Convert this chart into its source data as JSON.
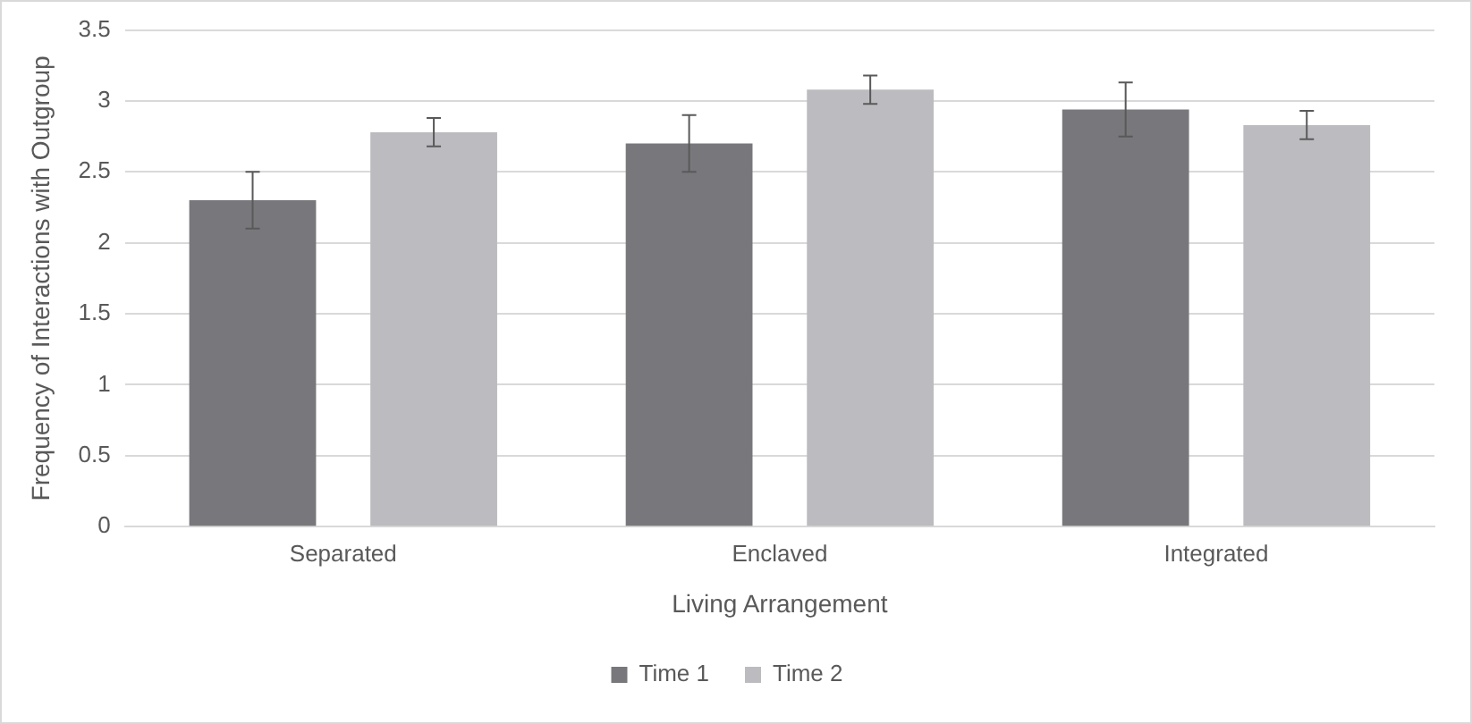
{
  "chart_data": {
    "type": "bar",
    "xlabel": "Living Arrangement",
    "ylabel": "Frequency of Interactions with Outgroup",
    "categories": [
      "Separated",
      "Enclaved",
      "Integrated"
    ],
    "series": [
      {
        "name": "Time 1",
        "color": "#78787c",
        "values": [
          2.3,
          2.7,
          2.94
        ],
        "errors": [
          0.2,
          0.2,
          0.19
        ]
      },
      {
        "name": "Time 2",
        "color": "#bcbcc0",
        "values": [
          2.78,
          3.08,
          2.83
        ],
        "errors": [
          0.1,
          0.1,
          0.1
        ]
      }
    ],
    "ylim": [
      0,
      3.5
    ],
    "yticks": [
      0,
      0.5,
      1,
      1.5,
      2,
      2.5,
      3,
      3.5
    ],
    "grid": "y",
    "legend": "bottom"
  }
}
